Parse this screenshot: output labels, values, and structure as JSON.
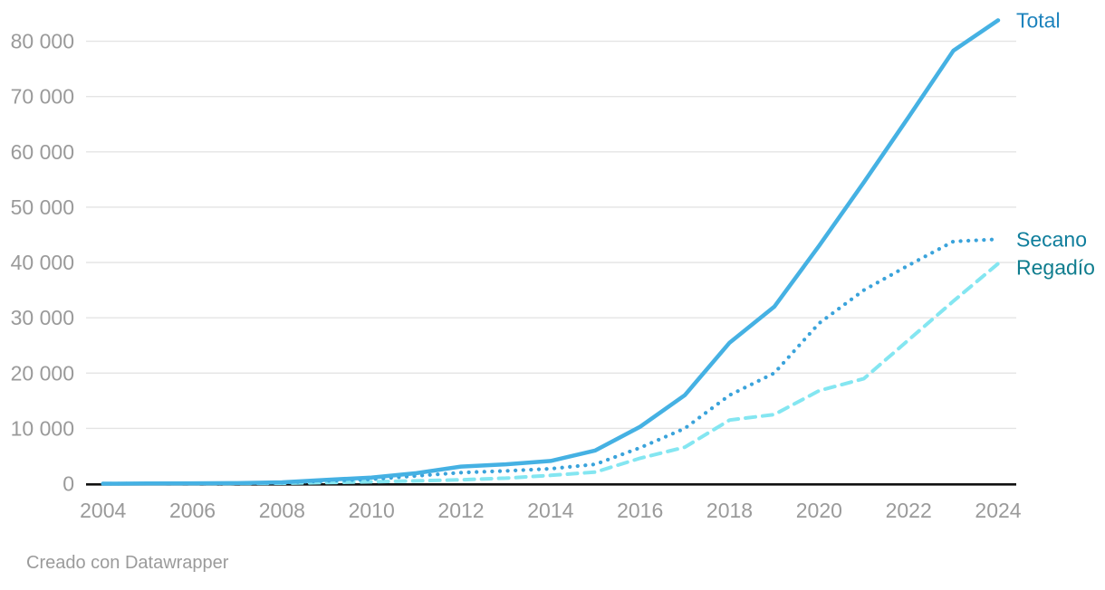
{
  "footer": {
    "text": "Creado con Datawrapper"
  },
  "colors": {
    "background": "#ffffff",
    "gridline": "#e4e4e4",
    "axis_baseline": "#111111",
    "tick_text": "#9a9a9a",
    "footer_text": "#9b9b9b"
  },
  "chart_data": {
    "type": "line",
    "x": [
      2004,
      2005,
      2006,
      2007,
      2008,
      2009,
      2010,
      2011,
      2012,
      2013,
      2014,
      2015,
      2016,
      2017,
      2018,
      2019,
      2020,
      2021,
      2022,
      2023,
      2024
    ],
    "series": [
      {
        "name": "Total",
        "style": "solid",
        "color": "#45b1e3",
        "label_color": "#1d83bd",
        "values": [
          0,
          30,
          60,
          100,
          250,
          700,
          1100,
          1900,
          3100,
          3500,
          4100,
          6000,
          10300,
          16000,
          25500,
          32000,
          43000,
          54500,
          66300,
          78300,
          83800
        ]
      },
      {
        "name": "Secano",
        "style": "dotted",
        "color": "#3aa3db",
        "label_color": "#0f7e9c",
        "values": [
          0,
          20,
          40,
          80,
          180,
          500,
          800,
          1400,
          2000,
          2300,
          2700,
          3500,
          6500,
          10000,
          16000,
          20000,
          29000,
          35000,
          39500,
          43800,
          44200
        ]
      },
      {
        "name": "Regadío",
        "style": "dashed",
        "color": "#84e6f1",
        "label_color": "#0f7d8e",
        "values": [
          0,
          10,
          20,
          40,
          80,
          200,
          350,
          500,
          700,
          1000,
          1500,
          2100,
          4600,
          6600,
          11500,
          12500,
          16800,
          19000,
          26000,
          33000,
          39800
        ]
      }
    ],
    "yticks": [
      {
        "v": 0,
        "label": "0"
      },
      {
        "v": 10000,
        "label": "10 000"
      },
      {
        "v": 20000,
        "label": "20 000"
      },
      {
        "v": 30000,
        "label": "30 000"
      },
      {
        "v": 40000,
        "label": "40 000"
      },
      {
        "v": 50000,
        "label": "50 000"
      },
      {
        "v": 60000,
        "label": "60 000"
      },
      {
        "v": 70000,
        "label": "70 000"
      },
      {
        "v": 80000,
        "label": "80 000"
      }
    ],
    "xticks": [
      2004,
      2006,
      2008,
      2010,
      2012,
      2014,
      2016,
      2018,
      2020,
      2022,
      2024
    ],
    "title": "",
    "xlabel": "",
    "ylabel": "",
    "xlim": [
      2004,
      2024
    ],
    "ylim": [
      0,
      84000
    ],
    "grid": true,
    "legend_position": "line-end-labels"
  }
}
